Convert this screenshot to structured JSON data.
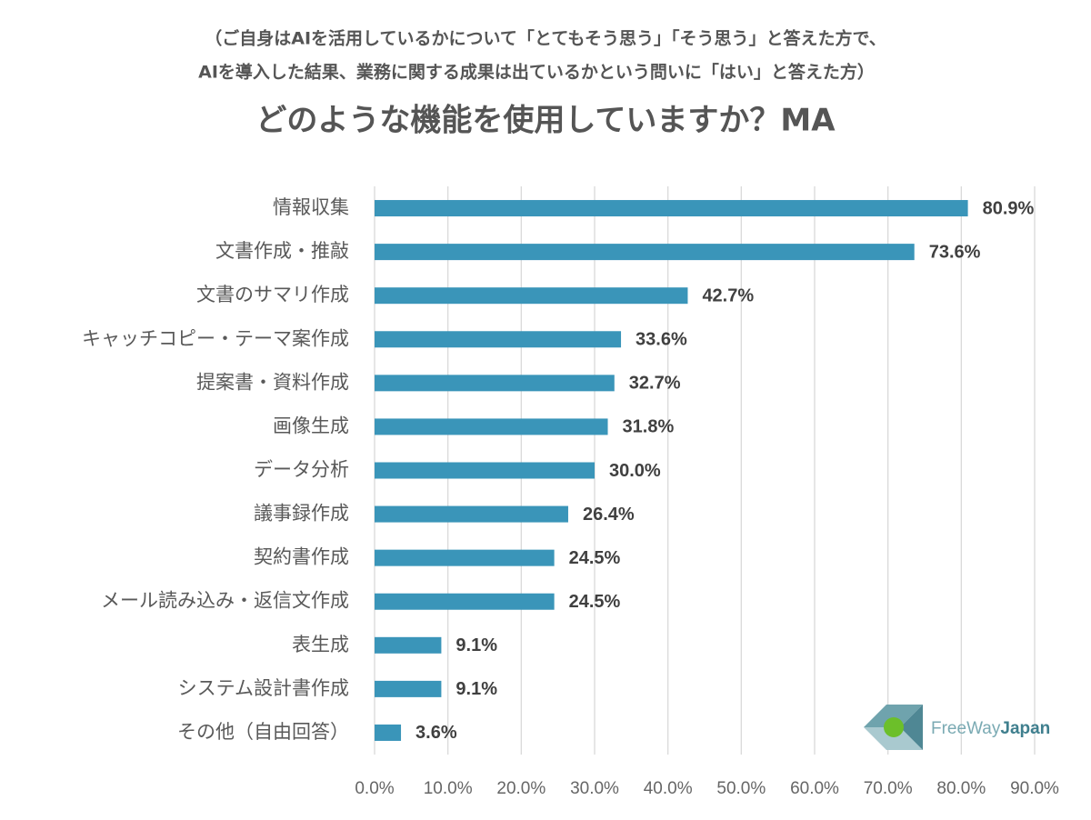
{
  "chart_data": {
    "type": "barh",
    "subtitle": [
      "（ご自身はAIを活用しているかについて「とてもそう思う」「そう思う」と答えた方で、",
      "AIを導入した結果、業務に関する成果は出ているかという問いに「はい」と答えた方）"
    ],
    "title": "どのような機能を使用していますか？MA",
    "categories": [
      "情報収集",
      "文書作成・推敲",
      "文書のサマリ作成",
      "キャッチコピー・テーマ案作成",
      "提案書・資料作成",
      "画像生成",
      "データ分析",
      "議事録作成",
      "契約書作成",
      "メール読み込み・返信文作成",
      "表生成",
      "システム設計書作成",
      "その他（自由回答）"
    ],
    "values": [
      80.9,
      73.6,
      42.7,
      33.6,
      32.7,
      31.8,
      30.0,
      26.4,
      24.5,
      24.5,
      9.1,
      9.1,
      3.6
    ],
    "value_labels": [
      "80.9%",
      "73.6%",
      "42.7%",
      "33.6%",
      "32.7%",
      "31.8%",
      "30.0%",
      "26.4%",
      "24.5%",
      "24.5%",
      "9.1%",
      "9.1%",
      "3.6%"
    ],
    "color": "#3a95b9",
    "xlim": [
      0,
      90
    ],
    "xticks": [
      {
        "value": 0,
        "label": "0.0%"
      },
      {
        "value": 10,
        "label": "10.0%"
      },
      {
        "value": 20,
        "label": "20.0%"
      },
      {
        "value": 30,
        "label": "30.0%"
      },
      {
        "value": 40,
        "label": "40.0%"
      },
      {
        "value": 50,
        "label": "50.0%"
      },
      {
        "value": 60,
        "label": "60.0%"
      },
      {
        "value": 70,
        "label": "70.0%"
      },
      {
        "value": 80,
        "label": "80.0%"
      },
      {
        "value": 90,
        "label": "90.0%"
      }
    ],
    "grid": true,
    "logo": [
      "FreeWay",
      "Japan"
    ]
  }
}
